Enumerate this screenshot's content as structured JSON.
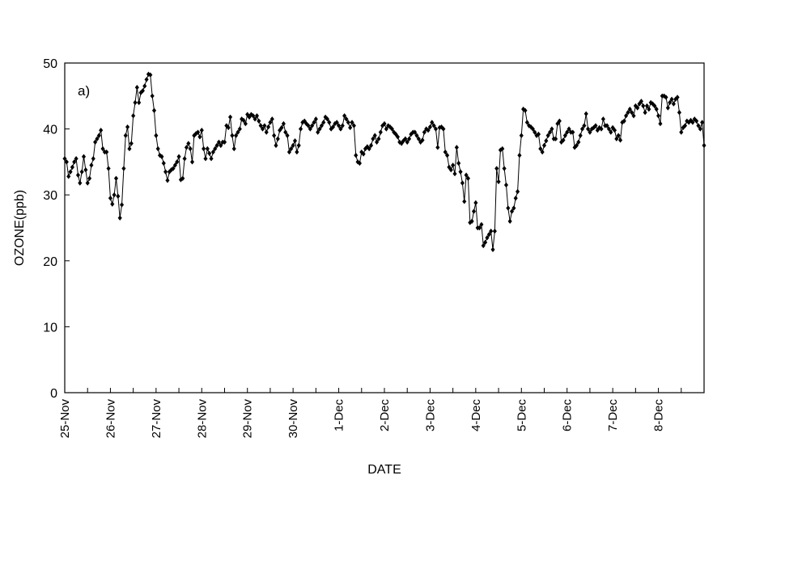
{
  "chart_data": {
    "type": "line",
    "panel_label": "a)",
    "xlabel": "DATE",
    "ylabel": "OZONE(ppb)",
    "ylim": [
      0,
      50
    ],
    "y_ticks": [
      "0",
      "10",
      "20",
      "30",
      "40",
      "50"
    ],
    "x_start": "2000-11-25",
    "x_end": "2000-12-09",
    "x_tick_labels": [
      "25-Nov",
      "26-Nov",
      "27-Nov",
      "28-Nov",
      "29-Nov",
      "30-Nov",
      "1-Dec",
      "2-Dec",
      "3-Dec",
      "4-Dec",
      "5-Dec",
      "6-Dec",
      "7-Dec",
      "8-Dec"
    ],
    "x_ticks_every_days": 0.5,
    "marker": "diamond",
    "color": "#000000",
    "grid": false,
    "legend": "none",
    "series": [
      {
        "values": [
          35.5,
          35.0,
          32.8,
          33.5,
          34.2,
          35.0,
          35.5,
          33.0,
          31.8,
          33.5,
          35.8,
          33.8,
          31.8,
          32.5,
          34.5,
          35.5,
          38.0,
          38.5,
          39.0,
          39.8,
          37.0,
          36.5,
          36.5,
          34.0,
          29.5,
          28.6,
          30.0,
          32.5,
          29.8,
          26.5,
          28.5,
          34.0,
          39.0,
          40.3,
          37.0,
          37.8,
          42.0,
          44.0,
          46.3,
          44.0,
          45.5,
          45.8,
          46.5,
          47.5,
          48.3,
          48.2,
          45.0,
          42.8,
          39.0,
          37.0,
          36.0,
          35.8,
          34.8,
          33.5,
          32.2,
          33.5,
          33.8,
          34.0,
          34.5,
          35.0,
          35.8,
          32.3,
          32.5,
          35.5,
          37.2,
          37.8,
          37.0,
          35.0,
          39.0,
          39.3,
          39.5,
          38.8,
          39.8,
          37.0,
          35.5,
          37.0,
          36.3,
          35.5,
          36.5,
          37.0,
          37.5,
          38.0,
          37.5,
          38.0,
          38.0,
          40.5,
          40.2,
          41.8,
          39.0,
          37.0,
          39.0,
          39.5,
          40.0,
          41.5,
          41.3,
          40.8,
          42.2,
          41.8,
          42.2,
          42.0,
          41.5,
          42.0,
          41.2,
          40.5,
          40.0,
          40.5,
          39.5,
          40.3,
          41.0,
          41.5,
          39.0,
          37.5,
          38.5,
          39.8,
          40.2,
          40.8,
          39.5,
          39.0,
          36.5,
          37.0,
          37.5,
          38.2,
          36.5,
          37.5,
          40.0,
          41.0,
          41.2,
          40.8,
          40.5,
          40.0,
          40.5,
          41.0,
          41.5,
          39.5,
          40.0,
          40.5,
          41.0,
          41.8,
          41.5,
          41.0,
          40.0,
          40.3,
          40.8,
          41.0,
          40.5,
          40.0,
          40.5,
          42.0,
          41.5,
          41.0,
          40.2,
          41.0,
          40.5,
          36.0,
          35.0,
          34.8,
          36.5,
          36.2,
          37.0,
          37.3,
          37.0,
          37.5,
          38.5,
          39.0,
          38.0,
          38.5,
          39.5,
          40.5,
          40.8,
          40.0,
          40.5,
          40.3,
          40.0,
          39.5,
          39.2,
          38.8,
          38.0,
          37.8,
          38.2,
          38.5,
          38.0,
          38.5,
          39.2,
          39.5,
          39.5,
          39.0,
          38.5,
          38.0,
          38.3,
          39.5,
          40.0,
          39.8,
          40.3,
          41.0,
          40.5,
          40.0,
          37.2,
          40.2,
          40.3,
          40.0,
          36.5,
          36.0,
          34.2,
          33.8,
          34.5,
          33.2,
          37.2,
          34.8,
          33.5,
          31.8,
          29.0,
          33.0,
          32.5,
          25.8,
          26.0,
          27.5,
          28.8,
          25.0,
          25.0,
          25.5,
          22.3,
          22.8,
          23.5,
          24.0,
          24.5,
          21.7,
          24.5,
          34.0,
          32.0,
          36.8,
          37.0,
          34.0,
          31.5,
          28.0,
          26.0,
          27.5,
          28.0,
          29.5,
          30.5,
          36.0,
          39.0,
          43.0,
          42.8,
          41.0,
          40.5,
          40.3,
          40.0,
          39.5,
          39.0,
          39.2,
          37.0,
          36.5,
          37.5,
          38.2,
          39.0,
          39.5,
          40.0,
          38.5,
          38.5,
          40.8,
          41.2,
          38.0,
          38.3,
          39.0,
          39.5,
          40.0,
          39.5,
          39.5,
          37.2,
          37.5,
          38.0,
          39.0,
          40.0,
          40.5,
          42.3,
          40.0,
          39.5,
          40.0,
          40.2,
          40.5,
          39.8,
          40.2,
          40.0,
          41.5,
          40.5,
          40.5,
          40.0,
          39.5,
          40.2,
          39.8,
          38.5,
          39.0,
          38.3,
          41.0,
          41.2,
          42.0,
          42.5,
          43.0,
          42.5,
          42.0,
          43.5,
          43.2,
          43.8,
          44.2,
          43.5,
          42.5,
          43.5,
          43.0,
          44.0,
          43.8,
          43.5,
          43.0,
          42.0,
          40.8,
          45.0,
          45.0,
          44.8,
          43.2,
          44.0,
          44.5,
          43.8,
          44.5,
          44.8,
          42.5,
          39.5,
          40.2,
          40.5,
          41.2,
          41.0,
          41.3,
          41.0,
          41.5,
          41.2,
          40.5,
          40.0,
          41.0,
          37.5
        ]
      }
    ]
  }
}
